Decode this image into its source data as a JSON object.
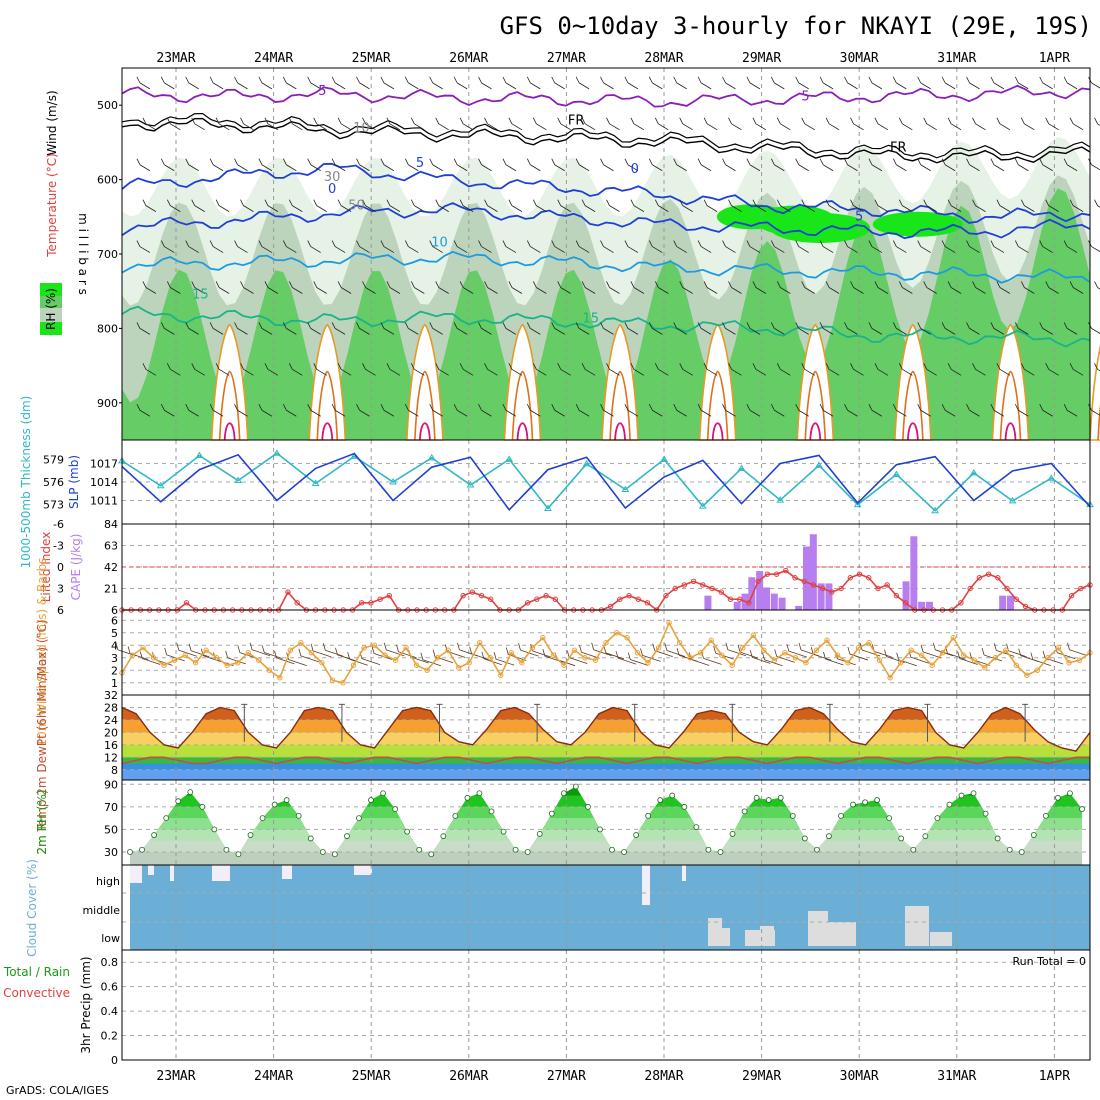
{
  "title": "GFS 0~10day 3-hourly for NKAYI (29E, 19S)",
  "footer": "GrADS: COLA/IGES",
  "colors": {
    "purple": "#8a1fb8",
    "black": "#000000",
    "blue": "#1f3fd6",
    "lightblue": "#1e9be0",
    "teal": "#19b38a",
    "orange": "#e49b2a",
    "darkorange": "#e0701a",
    "magenta": "#d8127a",
    "rh1": "#e6f2e6",
    "rh2": "#bcd4bc",
    "rh3": "#66cc66",
    "rh4": "#19e619",
    "slp": "#1f3fd6",
    "thick": "#2fb8c6",
    "cape": "#b77ef0",
    "li": "#e04040",
    "wind": "#e8a23a",
    "cloud": "#6baed6",
    "cloudclear": "#f2eef8",
    "clouddark": "#dddddd"
  },
  "chart_data": [
    {
      "id": "meteogram-dates",
      "type": "table",
      "categories": [
        "23MAR",
        "24MAR",
        "25MAR",
        "26MAR",
        "27MAR",
        "28MAR",
        "29MAR",
        "30MAR",
        "31MAR",
        "1APR"
      ]
    },
    {
      "id": "vertical-cross-section",
      "type": "heatmap",
      "ylabel": "m i l l i b a r s",
      "side_labels": [
        "Wind (m/s)",
        "Temperature (°C)",
        "RH (%)"
      ],
      "yticks": [
        500,
        600,
        700,
        800,
        900
      ],
      "ylim": [
        450,
        950
      ],
      "contour_labels": [
        {
          "text": "5",
          "color": "purple"
        },
        {
          "text": "5",
          "color": "purple"
        },
        {
          "text": "FR",
          "color": "black"
        },
        {
          "text": "FR",
          "color": "black"
        },
        {
          "text": "5",
          "color": "blue"
        },
        {
          "text": "0",
          "color": "blue"
        },
        {
          "text": "0",
          "color": "blue"
        },
        {
          "text": "5",
          "color": "blue"
        },
        {
          "text": "10",
          "color": "lightblue"
        },
        {
          "text": "15",
          "color": "teal"
        },
        {
          "text": "15",
          "color": "teal"
        },
        {
          "text": "10",
          "color": "grey"
        },
        {
          "text": "30",
          "color": "grey"
        },
        {
          "text": "50",
          "color": "grey"
        }
      ],
      "series": [
        {
          "name": "-5",
          "pressure": [
            485,
            488,
            485,
            490,
            492,
            495,
            492,
            488,
            485,
            480
          ]
        },
        {
          "name": "FR",
          "pressure": [
            525,
            527,
            535,
            540,
            545,
            550,
            560,
            568,
            570,
            565
          ]
        },
        {
          "name": "0",
          "pressure": [
            610,
            595,
            585,
            600,
            610,
            620,
            635,
            640,
            650,
            645
          ]
        },
        {
          "name": "5",
          "pressure": [
            665,
            655,
            645,
            640,
            650,
            660,
            665,
            670,
            670,
            660
          ]
        },
        {
          "name": "10",
          "pressure": [
            715,
            712,
            708,
            705,
            710,
            718,
            722,
            725,
            728,
            732
          ]
        },
        {
          "name": "15",
          "pressure": [
            780,
            785,
            790,
            785,
            790,
            795,
            800,
            810,
            812,
            815
          ]
        }
      ]
    },
    {
      "id": "slp-thickness",
      "type": "line",
      "left_label": "1000-500mb Thickness (dm)",
      "right_label": "SLP (mb)",
      "left_ticks": [
        573,
        576,
        579
      ],
      "right_ticks": [
        1011,
        1014,
        1017
      ],
      "series": [
        {
          "name": "SLP",
          "axis": "right",
          "values": [
            1016.5,
            1010.8,
            1016.0,
            1018.4,
            1011.0,
            1016.2,
            1018.6,
            1011.0,
            1016.4,
            1018.0,
            1009.5,
            1016.0,
            1018.0,
            1009.8,
            1014.8,
            1017.5,
            1010.5,
            1017.0,
            1018.3,
            1010.6,
            1016.8,
            1018.1,
            1011.0,
            1015.8,
            1017.0,
            1010.0
          ]
        },
        {
          "name": "Thickness",
          "axis": "left",
          "values": [
            578.8,
            575.5,
            579.5,
            576.2,
            579.8,
            575.8,
            579.4,
            576.0,
            579.2,
            575.6,
            579.0,
            572.5,
            578.4,
            575.0,
            579.0,
            572.8,
            577.8,
            573.6,
            578.2,
            573.0,
            577.0,
            572.2,
            577.2,
            573.5,
            576.5,
            573.0
          ]
        }
      ]
    },
    {
      "id": "cape-li",
      "type": "bar",
      "left_label": "Lifted Index",
      "right_label": "CAPE (J/kg)",
      "left_ticks": [
        -6,
        -3,
        0,
        3,
        6
      ],
      "right_ticks": [
        6,
        21,
        42,
        63,
        84
      ],
      "cape_series": {
        "name": "CAPE",
        "values": [
          0,
          0,
          0,
          0,
          0,
          0,
          0,
          0,
          0,
          0,
          0,
          0,
          0,
          0,
          0,
          0,
          0,
          0,
          0,
          0,
          0,
          0,
          0,
          0,
          0,
          0,
          0,
          0,
          0,
          0,
          0,
          0,
          0,
          0,
          0,
          0,
          0,
          0,
          0,
          0,
          0,
          0,
          0,
          0,
          0,
          0,
          0,
          0,
          0,
          0,
          0,
          0,
          0,
          0,
          0,
          0,
          0,
          0,
          0,
          0,
          0,
          0,
          0,
          0,
          0,
          0,
          0,
          0,
          0,
          0,
          0,
          0,
          0,
          0,
          0,
          0,
          0,
          0,
          0,
          0,
          0,
          0,
          0,
          0,
          0,
          0,
          0,
          0,
          0,
          0,
          0,
          0,
          0,
          0,
          0,
          0,
          0,
          0,
          0,
          0,
          0,
          0,
          0,
          0,
          0,
          0,
          0,
          0,
          0,
          0,
          0,
          0,
          0,
          0,
          0,
          0,
          0,
          0,
          0,
          0,
          0,
          0,
          0,
          0,
          0,
          0,
          0,
          0,
          0,
          0,
          0,
          0,
          0,
          0,
          0,
          0,
          0,
          0,
          0,
          0,
          0,
          0,
          0,
          0,
          0,
          0,
          0,
          0,
          0,
          0,
          0,
          0,
          0,
          0,
          0,
          0,
          0,
          0,
          0,
          0,
          0,
          0,
          0,
          0,
          0,
          0,
          0,
          0,
          0,
          0,
          0,
          0,
          0,
          0,
          0,
          0,
          0,
          0,
          0,
          0
        ]
      },
      "cape_bars": [
        {
          "t": 5.45,
          "v": 14
        },
        {
          "t": 5.75,
          "v": 8
        },
        {
          "t": 5.83,
          "v": 16
        },
        {
          "t": 5.9,
          "v": 32
        },
        {
          "t": 5.98,
          "v": 38
        },
        {
          "t": 6.05,
          "v": 22
        },
        {
          "t": 6.13,
          "v": 16
        },
        {
          "t": 6.21,
          "v": 12
        },
        {
          "t": 6.38,
          "v": 4
        },
        {
          "t": 6.46,
          "v": 62
        },
        {
          "t": 6.53,
          "v": 74
        },
        {
          "t": 6.61,
          "v": 26
        },
        {
          "t": 6.69,
          "v": 26
        },
        {
          "t": 7.48,
          "v": 28
        },
        {
          "t": 7.56,
          "v": 72
        },
        {
          "t": 7.64,
          "v": 8
        },
        {
          "t": 7.72,
          "v": 8
        },
        {
          "t": 8.47,
          "v": 14
        },
        {
          "t": 8.55,
          "v": 14
        }
      ],
      "li_series": {
        "name": "Lifted Index",
        "values": [
          6,
          6,
          6,
          6,
          6,
          6,
          6,
          5,
          6,
          6,
          6,
          6,
          6,
          6,
          6,
          6,
          6,
          6,
          3.5,
          5,
          6,
          6,
          6,
          6,
          6,
          6,
          5,
          5,
          4.5,
          4,
          6,
          6,
          6,
          6,
          6,
          6,
          6,
          4,
          3.5,
          4,
          4.5,
          6,
          6,
          6,
          5,
          4.5,
          4,
          4.5,
          6,
          6,
          6,
          6,
          6,
          5.5,
          4.5,
          4,
          4.5,
          5,
          6,
          4,
          3,
          2.5,
          2,
          2.5,
          3,
          3.5,
          4.5,
          4.5,
          5,
          2,
          1,
          1,
          0.5,
          1.5,
          2,
          2.5,
          3,
          3.5,
          3,
          1.5,
          1,
          1.5,
          3,
          2.5,
          4,
          5,
          6,
          6,
          6,
          6,
          6,
          5,
          3,
          1.5,
          1,
          1.5,
          3,
          4.5,
          5.5,
          6,
          6,
          6,
          6,
          4,
          3,
          2.5
        ]
      }
    },
    {
      "id": "wind-10m",
      "type": "line",
      "ylabel": "10m Wind Speed (m/s) & Barbs",
      "yticks": [
        1,
        2,
        3,
        4,
        5,
        6
      ],
      "series": [
        {
          "name": "10m Wind Speed",
          "values": [
            1.8,
            3.2,
            3.8,
            3.0,
            2.4,
            2.8,
            3.2,
            2.6,
            3.6,
            3.0,
            2.4,
            2.6,
            3.4,
            2.8,
            2.0,
            1.4,
            3.6,
            4.2,
            3.4,
            2.6,
            1.2,
            1.0,
            2.4,
            3.8,
            4.0,
            3.2,
            2.8,
            3.8,
            2.4,
            2.0,
            3.0,
            3.6,
            2.2,
            2.6,
            4.2,
            3.0,
            1.6,
            3.4,
            2.6,
            3.8,
            4.6,
            3.2,
            2.4,
            3.6,
            3.0,
            2.8,
            4.2,
            5.0,
            4.6,
            3.4,
            2.6,
            3.8,
            5.8,
            4.2,
            3.0,
            3.4,
            4.4,
            3.2,
            2.4,
            3.8,
            4.8,
            3.6,
            2.8,
            3.4,
            3.0,
            2.6,
            3.6,
            4.4,
            3.2,
            2.6,
            3.8,
            4.2,
            2.8,
            1.4,
            2.6,
            3.6,
            3.2,
            2.4,
            3.4,
            4.6,
            3.2,
            2.8,
            2.2,
            3.0,
            3.6,
            2.4,
            1.6,
            2.0,
            3.0,
            3.8,
            2.6,
            2.8,
            3.4
          ]
        }
      ]
    },
    {
      "id": "temp-dewpoint-2m",
      "type": "area",
      "ylabel": "2m Temp 2m DewPt (6hr Min/Max) (°C)",
      "yticks": [
        8,
        12,
        16,
        20,
        24,
        28,
        32
      ],
      "series": [
        {
          "name": "2m Temp",
          "values": [
            28,
            26,
            20,
            16,
            15,
            20,
            26,
            28,
            27,
            20,
            16,
            15,
            20,
            27,
            28,
            27,
            20,
            16,
            15,
            21,
            27,
            28,
            27,
            20,
            17,
            16,
            21,
            27,
            28,
            26,
            21,
            17,
            16,
            20,
            26,
            28,
            27,
            20,
            16,
            15,
            20,
            26,
            27,
            26,
            20,
            17,
            16,
            21,
            27,
            28,
            26,
            21,
            17,
            16,
            21,
            27,
            28,
            27,
            20,
            16,
            15,
            20,
            26,
            28,
            26,
            21,
            17,
            15,
            14,
            20
          ]
        },
        {
          "name": "2m DewPt",
          "values": [
            10,
            11,
            12,
            12,
            11,
            10,
            10,
            11,
            12,
            12,
            11,
            10,
            11,
            12,
            12,
            11,
            10,
            11,
            12,
            12,
            11,
            10,
            11,
            12,
            12,
            11,
            10,
            11,
            12,
            12,
            11,
            10,
            11,
            12,
            12,
            11,
            10,
            11,
            12,
            12,
            11,
            10,
            11,
            12,
            12,
            11,
            10,
            11,
            12,
            12,
            11,
            10,
            11,
            12,
            12,
            11,
            10,
            11,
            12,
            12,
            11,
            10,
            11,
            12,
            12,
            11,
            10,
            11,
            12,
            12
          ]
        }
      ]
    },
    {
      "id": "rh-2m",
      "type": "area",
      "ylabel": "2m RH (%)",
      "yticks": [
        30,
        50,
        70,
        90
      ],
      "series": [
        {
          "name": "2m RH",
          "values": [
            30,
            32,
            45,
            60,
            75,
            83,
            70,
            50,
            32,
            28,
            45,
            60,
            72,
            76,
            62,
            42,
            30,
            28,
            44,
            60,
            76,
            82,
            68,
            48,
            32,
            28,
            44,
            62,
            78,
            82,
            66,
            48,
            32,
            30,
            46,
            64,
            82,
            88,
            70,
            50,
            32,
            30,
            45,
            62,
            76,
            80,
            70,
            52,
            32,
            30,
            46,
            66,
            78,
            76,
            78,
            62,
            42,
            32,
            44,
            62,
            72,
            74,
            76,
            60,
            42,
            32,
            44,
            60,
            72,
            80,
            82,
            64,
            42,
            32,
            30,
            45,
            62,
            78,
            82,
            68
          ]
        }
      ]
    },
    {
      "id": "cloud-cover",
      "type": "area",
      "ylabel": "Cloud Cover (%)",
      "layers": [
        "high",
        "middle",
        "low"
      ]
    },
    {
      "id": "precip-3hr",
      "type": "bar",
      "ylabel": "3hr Precip (mm)",
      "side_labels": [
        "Total / Rain",
        "Convective"
      ],
      "yticks": [
        0,
        0.2,
        0.4,
        0.6,
        0.8
      ],
      "annotation": "Run Total = 0",
      "values": []
    }
  ]
}
